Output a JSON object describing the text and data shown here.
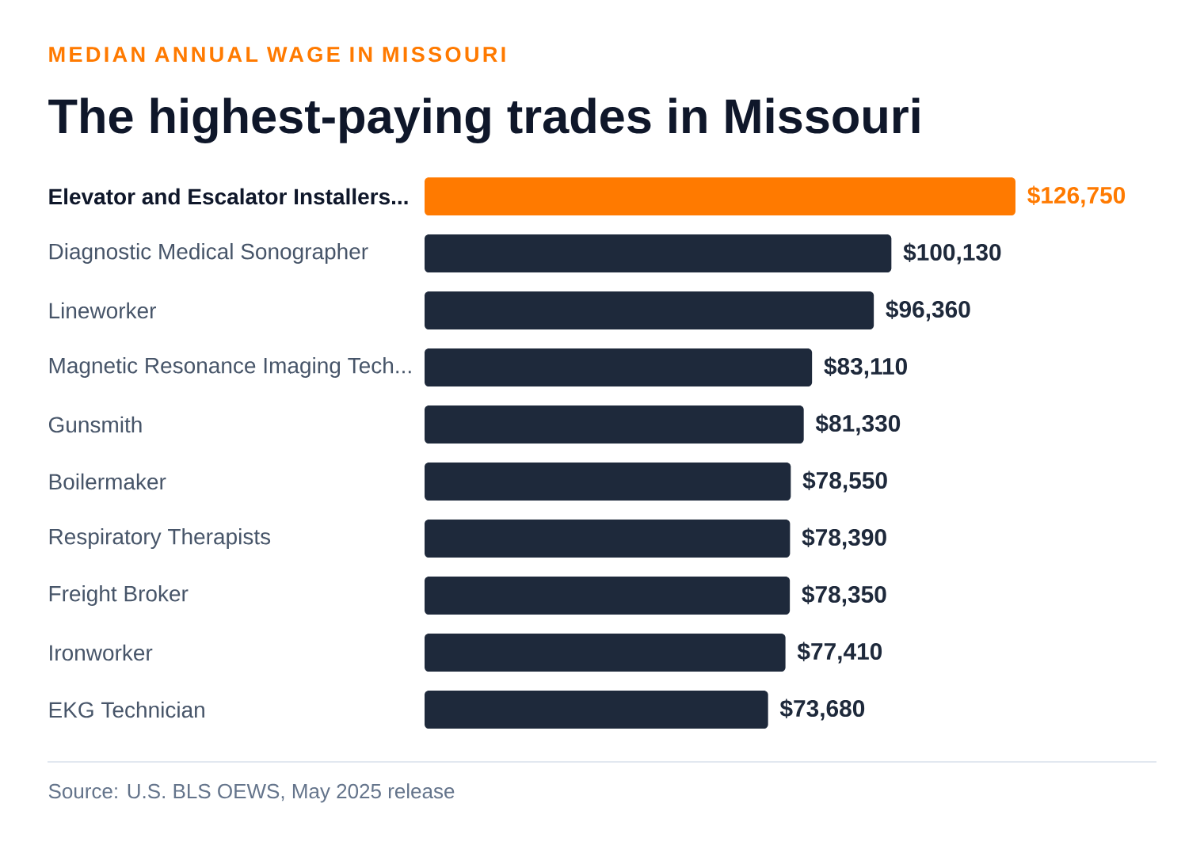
{
  "chart_data": {
    "type": "bar",
    "orientation": "horizontal",
    "subtitle": "MEDIAN ANNUAL WAGE IN MISSOURI",
    "title": "The highest-paying trades in Missouri",
    "categories": [
      "Elevator and Escalator Installers...",
      "Diagnostic Medical Sonographer",
      "Lineworker",
      "Magnetic Resonance Imaging Tech...",
      "Gunsmith",
      "Boilermaker",
      "Respiratory Therapists",
      "Freight Broker",
      "Ironworker",
      "EKG Technician"
    ],
    "values": [
      126750,
      100130,
      96360,
      83110,
      81330,
      78550,
      78390,
      78350,
      77410,
      73680
    ],
    "colors": [
      "#ff7a00",
      "#1e293b",
      "#1e293b",
      "#1e293b",
      "#1e293b",
      "#1e293b",
      "#1e293b",
      "#1e293b",
      "#1e293b",
      "#1e293b"
    ],
    "value_labels": [
      "$126,750",
      "$100,130",
      "$96,360",
      "$83,110",
      "$81,330",
      "$78,550",
      "$78,390",
      "$78,350",
      "$77,410",
      "$73,680"
    ],
    "tick_labels": "y",
    "annotations": [
      "Source: U.S. BLS OEWS, May 2025 release"
    ]
  }
}
